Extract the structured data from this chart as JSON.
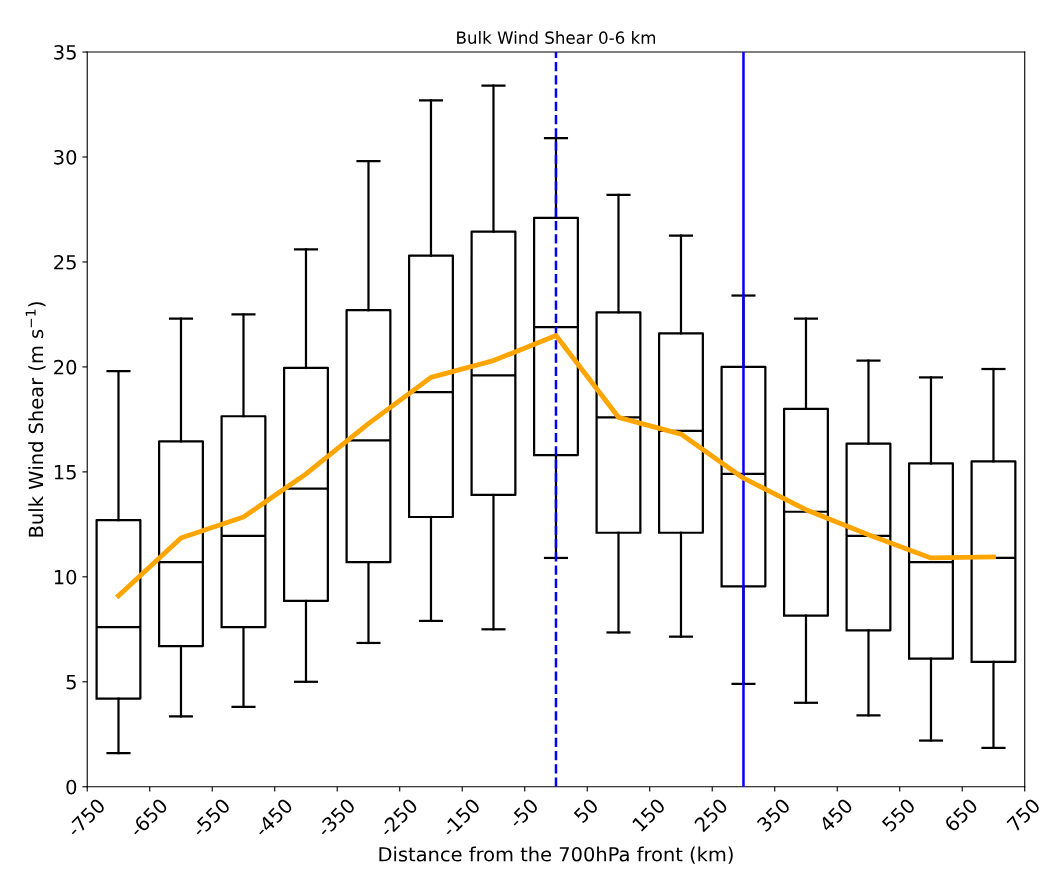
{
  "chart_data": {
    "type": "box",
    "title": "Bulk Wind Shear 0-6 km",
    "xlabel": "Distance from the 700hPa front (km)",
    "ylabel": "Bulk Wind Shear (m s$^{−1}$)",
    "x": [
      -700,
      -600,
      -500,
      -400,
      -300,
      -200,
      -100,
      0,
      100,
      200,
      300,
      400,
      500,
      600,
      700
    ],
    "boxes": [
      {
        "low": 1.6,
        "q1": 4.2,
        "median": 7.6,
        "q3": 12.7,
        "high": 19.8
      },
      {
        "low": 3.35,
        "q1": 6.7,
        "median": 10.7,
        "q3": 16.45,
        "high": 22.3
      },
      {
        "low": 3.8,
        "q1": 7.6,
        "median": 11.95,
        "q3": 17.65,
        "high": 22.5
      },
      {
        "low": 5.0,
        "q1": 8.85,
        "median": 14.2,
        "q3": 19.95,
        "high": 25.6
      },
      {
        "low": 6.85,
        "q1": 10.7,
        "median": 16.5,
        "q3": 22.7,
        "high": 29.8
      },
      {
        "low": 7.9,
        "q1": 12.85,
        "median": 18.8,
        "q3": 25.3,
        "high": 32.7
      },
      {
        "low": 7.5,
        "q1": 13.9,
        "median": 19.6,
        "q3": 26.45,
        "high": 33.4
      },
      {
        "low": 10.9,
        "q1": 15.8,
        "median": 21.9,
        "q3": 27.1,
        "high": 30.9
      },
      {
        "low": 7.35,
        "q1": 12.1,
        "median": 17.6,
        "q3": 22.6,
        "high": 28.2
      },
      {
        "low": 7.15,
        "q1": 12.1,
        "median": 16.95,
        "q3": 21.6,
        "high": 26.25
      },
      {
        "low": 4.9,
        "q1": 9.55,
        "median": 14.9,
        "q3": 20.0,
        "high": 23.4
      },
      {
        "low": 4.0,
        "q1": 8.15,
        "median": 13.1,
        "q3": 18.0,
        "high": 22.3
      },
      {
        "low": 3.4,
        "q1": 7.45,
        "median": 11.95,
        "q3": 16.35,
        "high": 20.3
      },
      {
        "low": 2.2,
        "q1": 6.1,
        "median": 10.7,
        "q3": 15.4,
        "high": 19.5
      },
      {
        "low": 1.85,
        "q1": 5.95,
        "median": 10.9,
        "q3": 15.5,
        "high": 19.9
      }
    ],
    "series": [
      {
        "type": "line",
        "color": "#ffa500",
        "x": [
          -700,
          -600,
          -500,
          -400,
          -300,
          -200,
          -100,
          0,
          100,
          200,
          300,
          400,
          500,
          600,
          700
        ],
        "values": [
          9.1,
          11.85,
          12.85,
          14.9,
          17.3,
          19.5,
          20.3,
          21.5,
          17.6,
          16.8,
          14.7,
          13.2,
          12.0,
          10.9,
          10.95
        ]
      }
    ],
    "ref_lines": [
      {
        "axis": "x",
        "value": 0,
        "color": "#0000ff",
        "line_style": "dashed"
      },
      {
        "axis": "x",
        "value": 300,
        "color": "#0000ff",
        "line_style": "solid"
      }
    ],
    "xlim": [
      -750,
      750
    ],
    "xticks": [
      -750,
      -650,
      -550,
      -450,
      -350,
      -250,
      -150,
      -50,
      50,
      150,
      250,
      350,
      450,
      550,
      650,
      750
    ],
    "ylim": [
      0,
      35
    ],
    "yticks": [
      0,
      5,
      10,
      15,
      20,
      25,
      30,
      35
    ],
    "grid": false
  }
}
